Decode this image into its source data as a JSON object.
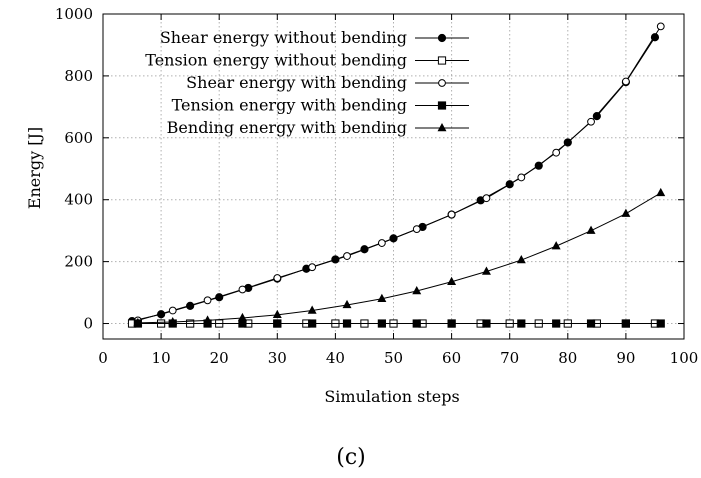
{
  "chart_data": {
    "type": "line",
    "title": "",
    "xlabel": "Simulation steps",
    "ylabel": "Energy [J]",
    "xlim": [
      0,
      100
    ],
    "ylim": [
      -50,
      1000
    ],
    "xticks": [
      0,
      10,
      20,
      30,
      40,
      50,
      60,
      70,
      80,
      90,
      100
    ],
    "yticks": [
      0,
      200,
      400,
      600,
      800,
      1000
    ],
    "grid": true,
    "legend_position": "top-left",
    "caption": "(c)",
    "series": [
      {
        "name": "Shear energy without bending",
        "marker": "filled-circle",
        "x": [
          5,
          10,
          15,
          20,
          25,
          30,
          35,
          40,
          45,
          50,
          55,
          60,
          65,
          70,
          75,
          80,
          85,
          90,
          95
        ],
        "y": [
          8,
          30,
          57,
          85,
          115,
          145,
          177,
          207,
          240,
          275,
          312,
          352,
          398,
          450,
          510,
          585,
          670,
          780,
          925
        ]
      },
      {
        "name": "Tension energy without bending",
        "marker": "open-square",
        "x": [
          5,
          10,
          15,
          20,
          25,
          30,
          35,
          40,
          45,
          50,
          55,
          60,
          65,
          70,
          75,
          80,
          85,
          90,
          95
        ],
        "y": [
          0,
          0,
          0,
          0,
          0,
          0,
          0,
          0,
          0,
          0,
          0,
          0,
          0,
          0,
          0,
          0,
          0,
          0,
          0
        ]
      },
      {
        "name": "Shear energy with bending",
        "marker": "open-circle",
        "x": [
          6,
          12,
          18,
          24,
          30,
          36,
          42,
          48,
          54,
          60,
          66,
          72,
          78,
          84,
          90,
          96
        ],
        "y": [
          10,
          42,
          75,
          110,
          147,
          182,
          218,
          260,
          305,
          352,
          405,
          472,
          552,
          652,
          782,
          960
        ]
      },
      {
        "name": "Tension energy with bending",
        "marker": "filled-square",
        "x": [
          6,
          12,
          18,
          24,
          30,
          36,
          42,
          48,
          54,
          60,
          66,
          72,
          78,
          84,
          90,
          96
        ],
        "y": [
          0,
          0,
          0,
          0,
          0,
          0,
          0,
          0,
          0,
          0,
          0,
          0,
          0,
          0,
          0,
          0
        ]
      },
      {
        "name": "Bending energy with bending",
        "marker": "filled-triangle",
        "x": [
          6,
          12,
          18,
          24,
          30,
          36,
          42,
          48,
          54,
          60,
          66,
          72,
          78,
          84,
          90,
          96
        ],
        "y": [
          2,
          5,
          10,
          18,
          28,
          42,
          60,
          80,
          105,
          135,
          168,
          205,
          250,
          300,
          355,
          422
        ]
      }
    ]
  }
}
